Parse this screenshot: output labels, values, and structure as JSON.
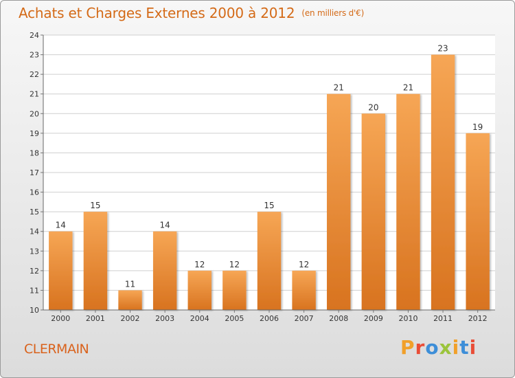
{
  "header": {
    "title": "Achats et Charges Externes 2000 à 2012",
    "unit": "(en milliers d'€)"
  },
  "footer": {
    "commune": "CLERMAIN",
    "logo_text": "Proxiti",
    "logo_colors": [
      "#f1a02a",
      "#e94d37",
      "#3d8ed8",
      "#9bc43c",
      "#f1a02a",
      "#3d8ed8",
      "#e94d37"
    ]
  },
  "colors": {
    "title": "#d46a17",
    "bar_light": "#f6a655",
    "bar_dark": "#d8731f",
    "grid": "#cfcfcf"
  },
  "chart_data": {
    "type": "bar",
    "categories": [
      "2000",
      "2001",
      "2002",
      "2003",
      "2004",
      "2005",
      "2006",
      "2007",
      "2008",
      "2009",
      "2010",
      "2011",
      "2012"
    ],
    "values": [
      14,
      15,
      11,
      14,
      12,
      12,
      15,
      12,
      21,
      20,
      21,
      23,
      19
    ],
    "data_labels": [
      "14",
      "15",
      "11",
      "14",
      "12",
      "12",
      "15",
      "12",
      "21",
      "20",
      "21",
      "23",
      "19"
    ],
    "yticks": [
      10,
      11,
      12,
      13,
      14,
      15,
      16,
      17,
      18,
      19,
      20,
      21,
      22,
      23,
      24
    ],
    "ylim": [
      10,
      24
    ],
    "grid": true,
    "title": "Achats et Charges Externes 2000 à 2012",
    "xlabel": "",
    "ylabel": ""
  }
}
